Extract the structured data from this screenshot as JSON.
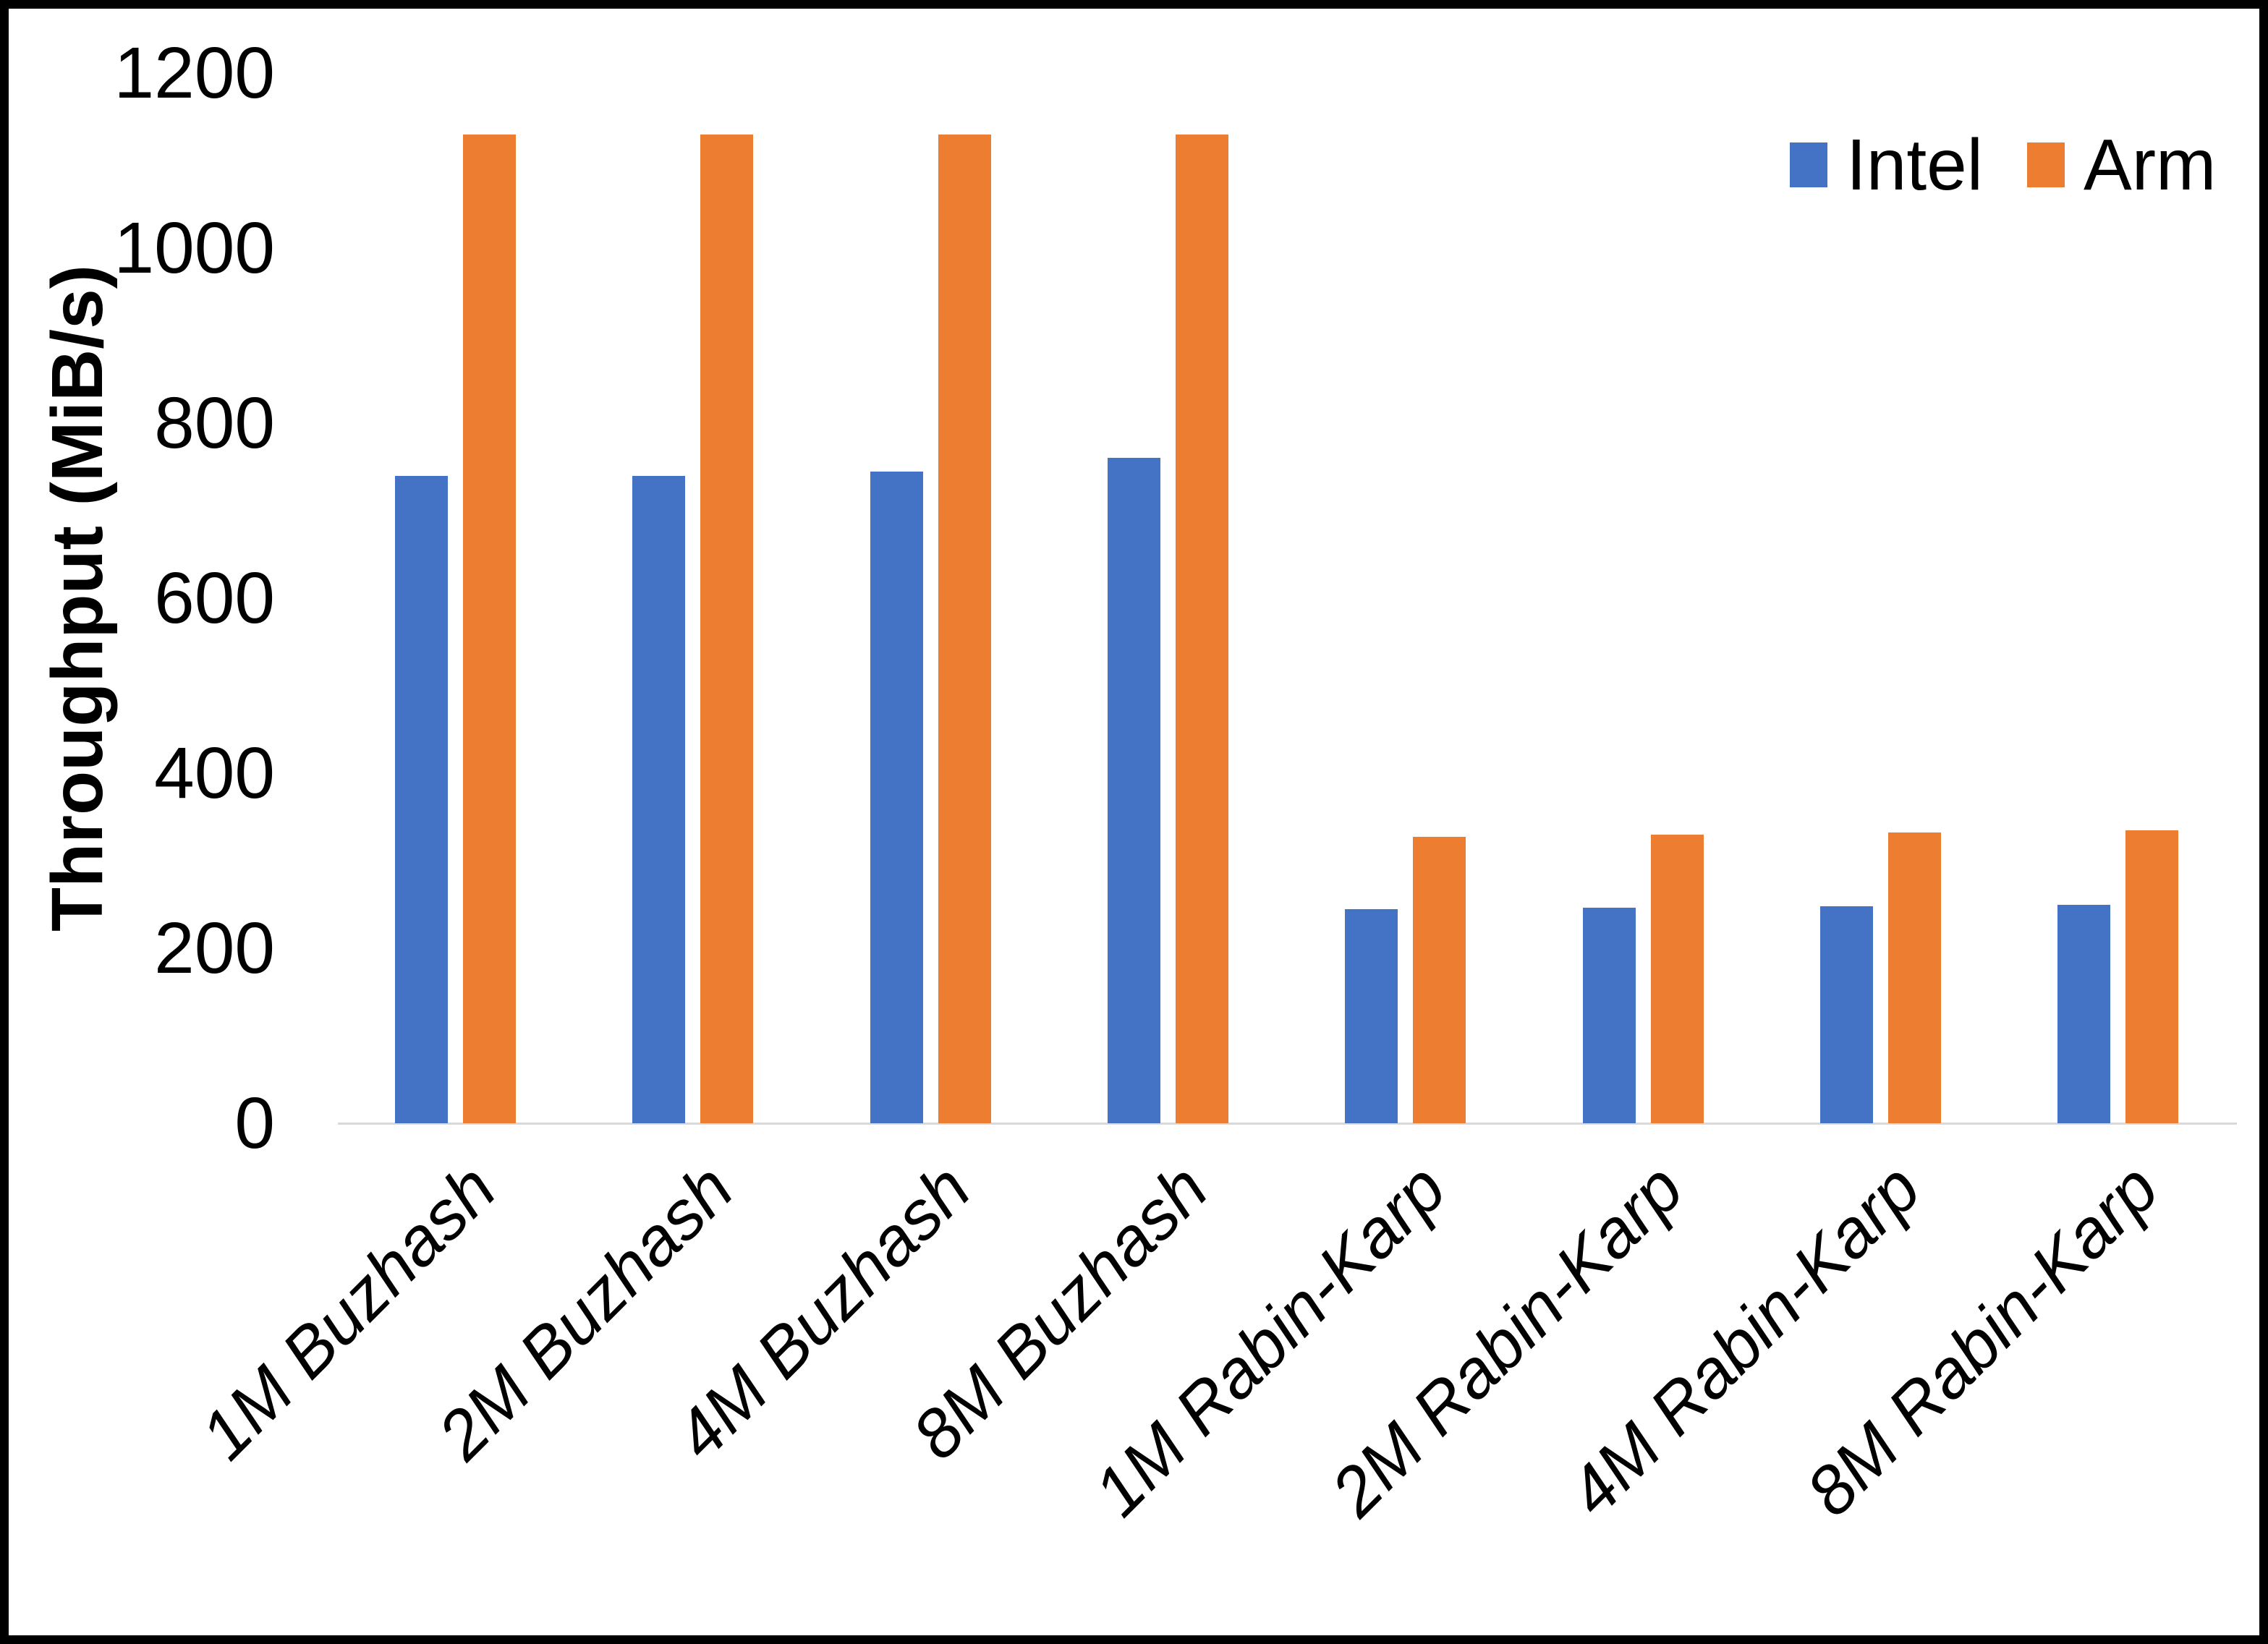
{
  "chart_data": {
    "type": "bar",
    "title": "",
    "xlabel": "",
    "ylabel": "Throughput (MiB/s)",
    "ylim": [
      0,
      1200
    ],
    "yticks": [
      0,
      200,
      400,
      600,
      800,
      1000,
      1200
    ],
    "grid": false,
    "legend_position": "top-right",
    "categories": [
      "1M Buzhash",
      "2M Buzhash",
      "4M Buzhash",
      "8M Buzhash",
      "1M Rabin-Karp",
      "2M Rabin-Karp",
      "4M Rabin-Karp",
      "8M Rabin-Karp"
    ],
    "series": [
      {
        "name": "Intel",
        "color": "#4472C4",
        "values": [
          740,
          740,
          745,
          760,
          245,
          246,
          248,
          250
        ]
      },
      {
        "name": "Arm",
        "color": "#ED7D31",
        "values": [
          1130,
          1130,
          1130,
          1130,
          327,
          330,
          332,
          335
        ]
      }
    ]
  },
  "axis": {
    "line_color": "#D9D9D9",
    "text_color": "#000000"
  }
}
